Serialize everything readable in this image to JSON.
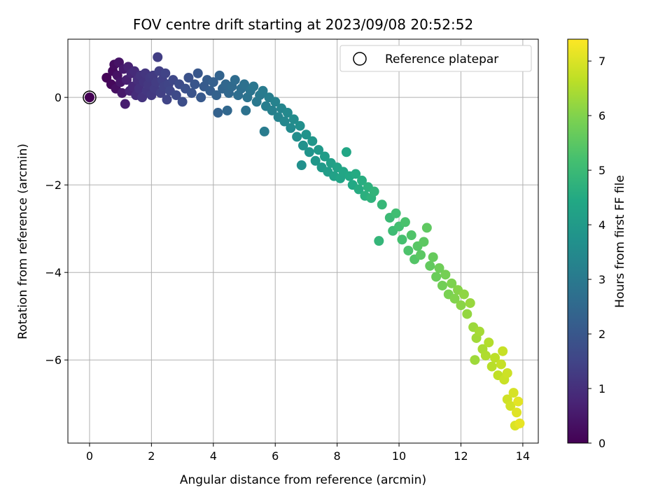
{
  "chart_data": {
    "type": "scatter",
    "title": "FOV centre drift starting at 2023/09/08 20:52:52",
    "xlabel": "Angular distance from reference (arcmin)",
    "ylabel": "Rotation from reference (arcmin)",
    "xlim": [
      -0.7,
      14.5
    ],
    "ylim": [
      -7.9,
      1.33
    ],
    "xticks": [
      0,
      2,
      4,
      6,
      8,
      10,
      12,
      14
    ],
    "xtick_labels": [
      "0",
      "2",
      "4",
      "6",
      "8",
      "10",
      "12",
      "14"
    ],
    "yticks": [
      0,
      -2,
      -4,
      -6
    ],
    "ytick_labels": [
      "0",
      "−2",
      "−4",
      "−6"
    ],
    "grid": true,
    "legend": {
      "placement": "top-right",
      "entries": [
        "Reference platepar"
      ]
    },
    "reference_point": {
      "x": 0,
      "y": 0,
      "label": "Reference platepar"
    },
    "colorbar": {
      "label": "Hours from first FF file",
      "range": [
        0,
        7.4
      ],
      "ticks": [
        0,
        1,
        2,
        3,
        4,
        5,
        6,
        7
      ],
      "tick_labels": [
        "0",
        "1",
        "2",
        "3",
        "4",
        "5",
        "6",
        "7"
      ],
      "colormap": "viridis"
    },
    "points": [
      [
        0.55,
        0.45,
        0.1
      ],
      [
        0.7,
        0.3,
        0.15
      ],
      [
        0.75,
        0.6,
        0.2
      ],
      [
        0.8,
        0.75,
        0.25
      ],
      [
        0.85,
        0.2,
        0.3
      ],
      [
        0.9,
        0.5,
        0.35
      ],
      [
        0.95,
        0.8,
        0.4
      ],
      [
        1.0,
        0.35,
        0.45
      ],
      [
        1.05,
        0.1,
        0.5
      ],
      [
        1.1,
        0.65,
        0.55
      ],
      [
        1.15,
        -0.15,
        0.6
      ],
      [
        1.2,
        0.4,
        0.65
      ],
      [
        1.25,
        0.7,
        0.7
      ],
      [
        1.3,
        0.15,
        0.75
      ],
      [
        1.35,
        0.55,
        0.8
      ],
      [
        1.4,
        0.25,
        0.85
      ],
      [
        1.45,
        0.6,
        0.9
      ],
      [
        1.5,
        0.05,
        0.95
      ],
      [
        1.55,
        0.4,
        1.0
      ],
      [
        1.6,
        0.2,
        1.05
      ],
      [
        1.65,
        0.5,
        1.08
      ],
      [
        1.7,
        0.0,
        1.1
      ],
      [
        1.75,
        0.35,
        1.12
      ],
      [
        1.8,
        0.55,
        1.15
      ],
      [
        1.85,
        0.15,
        1.18
      ],
      [
        1.9,
        0.3,
        1.2
      ],
      [
        1.95,
        0.45,
        1.22
      ],
      [
        2.0,
        0.05,
        1.25
      ],
      [
        2.05,
        0.5,
        1.28
      ],
      [
        2.1,
        0.2,
        1.3
      ],
      [
        2.15,
        0.35,
        1.32
      ],
      [
        2.2,
        0.92,
        1.35
      ],
      [
        2.25,
        0.6,
        1.38
      ],
      [
        2.3,
        0.1,
        1.4
      ],
      [
        2.35,
        0.4,
        1.42
      ],
      [
        2.4,
        0.25,
        1.45
      ],
      [
        2.45,
        0.55,
        1.48
      ],
      [
        2.5,
        -0.05,
        1.5
      ],
      [
        2.55,
        0.3,
        1.52
      ],
      [
        2.6,
        0.15,
        1.55
      ],
      [
        2.7,
        0.4,
        1.6
      ],
      [
        2.8,
        0.05,
        1.65
      ],
      [
        2.9,
        0.3,
        1.7
      ],
      [
        3.0,
        -0.1,
        1.75
      ],
      [
        3.1,
        0.2,
        1.8
      ],
      [
        3.2,
        0.45,
        1.85
      ],
      [
        3.3,
        0.1,
        1.9
      ],
      [
        3.4,
        0.3,
        1.95
      ],
      [
        3.5,
        0.55,
        2.0
      ],
      [
        3.6,
        0.0,
        2.05
      ],
      [
        3.7,
        0.25,
        2.1
      ],
      [
        3.8,
        0.4,
        2.15
      ],
      [
        3.9,
        0.15,
        2.2
      ],
      [
        4.0,
        0.35,
        2.25
      ],
      [
        4.1,
        0.05,
        2.3
      ],
      [
        4.15,
        -0.35,
        2.32
      ],
      [
        4.2,
        0.5,
        2.35
      ],
      [
        4.3,
        0.2,
        2.4
      ],
      [
        4.4,
        0.3,
        2.45
      ],
      [
        4.45,
        -0.3,
        2.47
      ],
      [
        4.5,
        0.1,
        2.5
      ],
      [
        4.6,
        0.25,
        2.55
      ],
      [
        4.7,
        0.4,
        2.6
      ],
      [
        4.8,
        0.05,
        2.65
      ],
      [
        4.9,
        0.2,
        2.7
      ],
      [
        5.0,
        0.3,
        2.75
      ],
      [
        5.05,
        -0.3,
        2.77
      ],
      [
        5.1,
        0.0,
        2.8
      ],
      [
        5.2,
        0.15,
        2.85
      ],
      [
        5.3,
        0.25,
        2.9
      ],
      [
        5.4,
        -0.1,
        2.95
      ],
      [
        5.5,
        0.05,
        3.0
      ],
      [
        5.6,
        0.15,
        3.05
      ],
      [
        5.65,
        -0.78,
        3.07
      ],
      [
        5.7,
        -0.2,
        3.1
      ],
      [
        5.8,
        0.0,
        3.15
      ],
      [
        5.9,
        -0.3,
        3.2
      ],
      [
        6.0,
        -0.1,
        3.25
      ],
      [
        6.1,
        -0.45,
        3.3
      ],
      [
        6.2,
        -0.25,
        3.35
      ],
      [
        6.3,
        -0.55,
        3.4
      ],
      [
        6.4,
        -0.35,
        3.45
      ],
      [
        6.5,
        -0.7,
        3.5
      ],
      [
        6.6,
        -0.5,
        3.55
      ],
      [
        6.7,
        -0.9,
        3.6
      ],
      [
        6.8,
        -0.65,
        3.65
      ],
      [
        6.85,
        -1.55,
        3.67
      ],
      [
        6.9,
        -1.1,
        3.7
      ],
      [
        7.0,
        -0.85,
        3.75
      ],
      [
        7.1,
        -1.25,
        3.8
      ],
      [
        7.2,
        -1.0,
        3.85
      ],
      [
        7.3,
        -1.45,
        3.9
      ],
      [
        7.4,
        -1.2,
        3.95
      ],
      [
        7.5,
        -1.6,
        4.0
      ],
      [
        7.6,
        -1.35,
        4.05
      ],
      [
        7.7,
        -1.7,
        4.1
      ],
      [
        7.8,
        -1.5,
        4.15
      ],
      [
        7.9,
        -1.8,
        4.2
      ],
      [
        8.0,
        -1.6,
        4.25
      ],
      [
        8.1,
        -1.85,
        4.3
      ],
      [
        8.2,
        -1.7,
        4.35
      ],
      [
        8.3,
        -1.25,
        4.37
      ],
      [
        8.4,
        -1.8,
        4.4
      ],
      [
        8.5,
        -2.0,
        4.45
      ],
      [
        8.6,
        -1.75,
        4.5
      ],
      [
        8.7,
        -2.1,
        4.55
      ],
      [
        8.8,
        -1.9,
        4.6
      ],
      [
        8.9,
        -2.25,
        4.65
      ],
      [
        9.0,
        -2.05,
        4.7
      ],
      [
        9.1,
        -2.3,
        4.75
      ],
      [
        9.2,
        -2.15,
        4.8
      ],
      [
        9.35,
        -3.28,
        4.85
      ],
      [
        9.45,
        -2.45,
        4.9
      ],
      [
        9.7,
        -2.75,
        5.0
      ],
      [
        9.8,
        -3.05,
        5.05
      ],
      [
        9.9,
        -2.65,
        5.1
      ],
      [
        10.0,
        -2.95,
        5.15
      ],
      [
        10.1,
        -3.25,
        5.2
      ],
      [
        10.2,
        -2.85,
        5.25
      ],
      [
        10.3,
        -3.5,
        5.3
      ],
      [
        10.4,
        -3.15,
        5.35
      ],
      [
        10.5,
        -3.7,
        5.4
      ],
      [
        10.6,
        -3.4,
        5.45
      ],
      [
        10.7,
        -3.6,
        5.5
      ],
      [
        10.8,
        -3.3,
        5.52
      ],
      [
        10.9,
        -2.98,
        5.55
      ],
      [
        11.0,
        -3.85,
        5.6
      ],
      [
        11.1,
        -3.65,
        5.65
      ],
      [
        11.2,
        -4.1,
        5.7
      ],
      [
        11.3,
        -3.9,
        5.75
      ],
      [
        11.4,
        -4.3,
        5.8
      ],
      [
        11.5,
        -4.05,
        5.85
      ],
      [
        11.6,
        -4.5,
        5.9
      ],
      [
        11.7,
        -4.25,
        5.95
      ],
      [
        11.8,
        -4.6,
        6.0
      ],
      [
        11.9,
        -4.4,
        6.05
      ],
      [
        12.0,
        -4.75,
        6.1
      ],
      [
        12.1,
        -4.5,
        6.15
      ],
      [
        12.2,
        -4.95,
        6.2
      ],
      [
        12.3,
        -4.7,
        6.25
      ],
      [
        12.4,
        -5.25,
        6.3
      ],
      [
        12.45,
        -6.0,
        6.32
      ],
      [
        12.5,
        -5.5,
        6.35
      ],
      [
        12.6,
        -5.35,
        6.4
      ],
      [
        12.7,
        -5.75,
        6.45
      ],
      [
        12.8,
        -5.9,
        6.5
      ],
      [
        12.9,
        -5.6,
        6.55
      ],
      [
        13.0,
        -6.15,
        6.6
      ],
      [
        13.1,
        -5.95,
        6.65
      ],
      [
        13.2,
        -6.35,
        6.7
      ],
      [
        13.3,
        -6.1,
        6.75
      ],
      [
        13.35,
        -5.8,
        6.77
      ],
      [
        13.4,
        -6.45,
        6.8
      ],
      [
        13.5,
        -6.3,
        6.85
      ],
      [
        13.5,
        -6.9,
        6.87
      ],
      [
        13.6,
        -7.05,
        6.9
      ],
      [
        13.7,
        -6.75,
        6.95
      ],
      [
        13.75,
        -7.5,
        7.0
      ],
      [
        13.8,
        -7.2,
        7.05
      ],
      [
        13.85,
        -6.95,
        7.1
      ],
      [
        13.9,
        -7.45,
        7.15
      ]
    ]
  }
}
